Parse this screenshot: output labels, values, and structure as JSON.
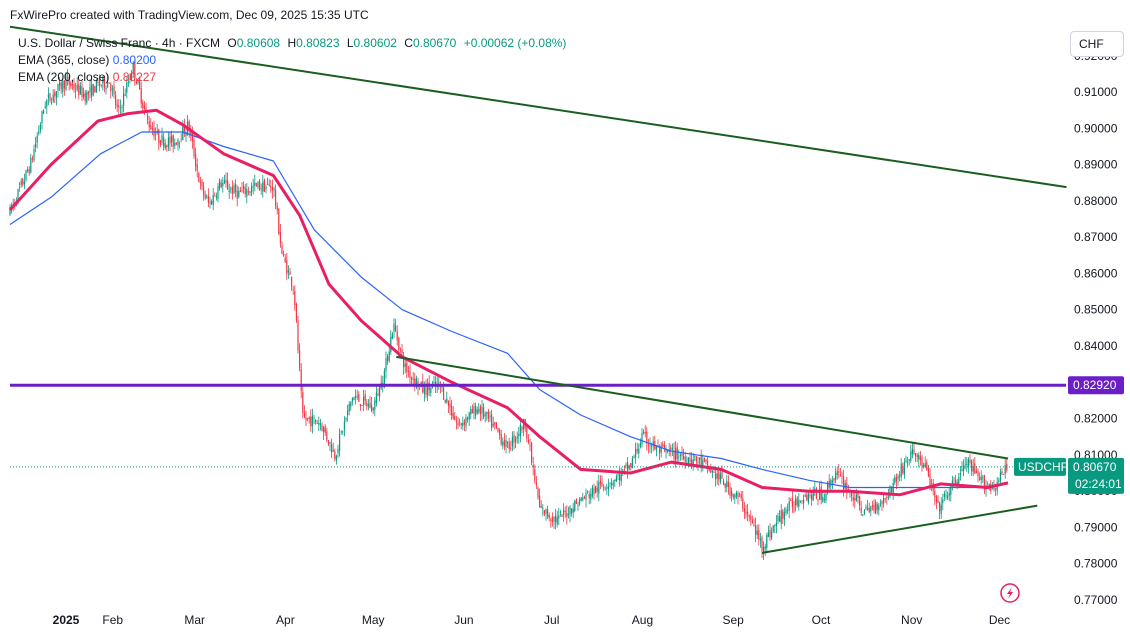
{
  "attribution": "FxWirePro created with TradingView.com, Dec 09, 2025 15:35 UTC",
  "legend": {
    "symbol": "U.S. Dollar / Swiss Franc · 4h · FXCM",
    "open_label": "O",
    "open": "0.80608",
    "high_label": "H",
    "high": "0.80823",
    "low_label": "L",
    "low": "0.80602",
    "close_label": "C",
    "close": "0.80670",
    "change": "+0.00062 (+0.08%)",
    "ema365_label": "EMA (365, close)",
    "ema365_value": "0.80200",
    "ema200_label": "EMA (200, close)",
    "ema200_value": "0.80227"
  },
  "currency": "CHF",
  "colors": {
    "up": "#089981",
    "down": "#f23645",
    "ema365": "#2962ff",
    "ema200": "#e91e63",
    "trendline": "#1b5e20",
    "level": "#6a1fc7",
    "price_tag": "#089981"
  },
  "chart_data": {
    "type": "candlestick",
    "ylim": [
      0.77,
      0.926
    ],
    "y_ticks": [
      "0.92000",
      "0.91000",
      "0.90000",
      "0.89000",
      "0.88000",
      "0.87000",
      "0.86000",
      "0.85000",
      "0.84000",
      "0.83000",
      "0.82000",
      "0.81000",
      "0.80000",
      "0.79000",
      "0.78000",
      "0.77000"
    ],
    "x_ticks": [
      "2025",
      "Feb",
      "Mar",
      "Apr",
      "May",
      "Jun",
      "Jul",
      "Aug",
      "Sep",
      "Oct",
      "Nov",
      "Dec"
    ],
    "x_domain": [
      "2025-01-01",
      "2025-12-31"
    ],
    "horizontal_level": {
      "value": 0.8292,
      "label": "0.82920"
    },
    "last_price": {
      "symbol": "USDCHF",
      "value": 0.8067,
      "label": "0.80670",
      "countdown": "02:24:01"
    },
    "trendlines": [
      {
        "from": [
          "2025-01-01",
          0.928
        ],
        "to": [
          "2025-12-28",
          0.8838
        ]
      },
      {
        "from": [
          "2025-05-13",
          0.837
        ],
        "to": [
          "2025-12-08",
          0.809
        ]
      },
      {
        "from": [
          "2025-09-15",
          0.783
        ],
        "to": [
          "2025-12-18",
          0.796
        ]
      }
    ],
    "price_path": [
      [
        "2025-01-01",
        0.877
      ],
      [
        "2025-01-08",
        0.89
      ],
      [
        "2025-01-13",
        0.907
      ],
      [
        "2025-01-20",
        0.913
      ],
      [
        "2025-01-27",
        0.909
      ],
      [
        "2025-01-31",
        0.912
      ],
      [
        "2025-02-04",
        0.913
      ],
      [
        "2025-02-07",
        0.904
      ],
      [
        "2025-02-12",
        0.917
      ],
      [
        "2025-02-17",
        0.902
      ],
      [
        "2025-02-21",
        0.897
      ],
      [
        "2025-02-26",
        0.896
      ],
      [
        "2025-03-03",
        0.901
      ],
      [
        "2025-03-07",
        0.884
      ],
      [
        "2025-03-10",
        0.879
      ],
      [
        "2025-03-14",
        0.885
      ],
      [
        "2025-03-20",
        0.882
      ],
      [
        "2025-03-26",
        0.884
      ],
      [
        "2025-04-01",
        0.884
      ],
      [
        "2025-04-04",
        0.865
      ],
      [
        "2025-04-08",
        0.856
      ],
      [
        "2025-04-11",
        0.82
      ],
      [
        "2025-04-17",
        0.819
      ],
      [
        "2025-04-22",
        0.81
      ],
      [
        "2025-04-28",
        0.826
      ],
      [
        "2025-05-05",
        0.823
      ],
      [
        "2025-05-09",
        0.833
      ],
      [
        "2025-05-12",
        0.846
      ],
      [
        "2025-05-16",
        0.834
      ],
      [
        "2025-05-22",
        0.828
      ],
      [
        "2025-05-28",
        0.829
      ],
      [
        "2025-06-03",
        0.818
      ],
      [
        "2025-06-10",
        0.823
      ],
      [
        "2025-06-16",
        0.817
      ],
      [
        "2025-06-20",
        0.812
      ],
      [
        "2025-06-26",
        0.819
      ],
      [
        "2025-07-01",
        0.795
      ],
      [
        "2025-07-07",
        0.792
      ],
      [
        "2025-07-14",
        0.797
      ],
      [
        "2025-07-21",
        0.801
      ],
      [
        "2025-07-28",
        0.804
      ],
      [
        "2025-08-01",
        0.807
      ],
      [
        "2025-08-05",
        0.815
      ],
      [
        "2025-08-11",
        0.811
      ],
      [
        "2025-08-18",
        0.81
      ],
      [
        "2025-08-25",
        0.808
      ],
      [
        "2025-09-01",
        0.803
      ],
      [
        "2025-09-08",
        0.797
      ],
      [
        "2025-09-15",
        0.785
      ],
      [
        "2025-09-22",
        0.794
      ],
      [
        "2025-09-29",
        0.799
      ],
      [
        "2025-10-06",
        0.799
      ],
      [
        "2025-10-10",
        0.805
      ],
      [
        "2025-10-14",
        0.801
      ],
      [
        "2025-10-20",
        0.794
      ],
      [
        "2025-10-27",
        0.798
      ],
      [
        "2025-11-03",
        0.808
      ],
      [
        "2025-11-06",
        0.811
      ],
      [
        "2025-11-10",
        0.806
      ],
      [
        "2025-11-14",
        0.795
      ],
      [
        "2025-11-18",
        0.8
      ],
      [
        "2025-11-24",
        0.808
      ],
      [
        "2025-11-28",
        0.803
      ],
      [
        "2025-12-03",
        0.801
      ],
      [
        "2025-12-08",
        0.8067
      ]
    ],
    "ema200": [
      [
        "2025-01-01",
        0.8775
      ],
      [
        "2025-01-15",
        0.89
      ],
      [
        "2025-01-31",
        0.902
      ],
      [
        "2025-02-10",
        0.904
      ],
      [
        "2025-02-20",
        0.905
      ],
      [
        "2025-03-01",
        0.901
      ],
      [
        "2025-03-15",
        0.893
      ],
      [
        "2025-04-01",
        0.887
      ],
      [
        "2025-04-10",
        0.876
      ],
      [
        "2025-04-20",
        0.857
      ],
      [
        "2025-05-01",
        0.847
      ],
      [
        "2025-05-15",
        0.837
      ],
      [
        "2025-06-01",
        0.83
      ],
      [
        "2025-06-20",
        0.823
      ],
      [
        "2025-07-01",
        0.815
      ],
      [
        "2025-07-15",
        0.806
      ],
      [
        "2025-08-01",
        0.805
      ],
      [
        "2025-08-15",
        0.808
      ],
      [
        "2025-09-01",
        0.806
      ],
      [
        "2025-09-15",
        0.801
      ],
      [
        "2025-10-01",
        0.8
      ],
      [
        "2025-10-15",
        0.8
      ],
      [
        "2025-11-01",
        0.799
      ],
      [
        "2025-11-15",
        0.802
      ],
      [
        "2025-12-01",
        0.801
      ],
      [
        "2025-12-08",
        0.8023
      ]
    ],
    "ema365": [
      [
        "2025-01-01",
        0.8735
      ],
      [
        "2025-01-15",
        0.881
      ],
      [
        "2025-02-01",
        0.893
      ],
      [
        "2025-02-15",
        0.899
      ],
      [
        "2025-03-01",
        0.899
      ],
      [
        "2025-03-15",
        0.895
      ],
      [
        "2025-04-01",
        0.891
      ],
      [
        "2025-04-15",
        0.872
      ],
      [
        "2025-05-01",
        0.859
      ],
      [
        "2025-05-15",
        0.85
      ],
      [
        "2025-06-01",
        0.844
      ],
      [
        "2025-06-20",
        0.838
      ],
      [
        "2025-07-01",
        0.828
      ],
      [
        "2025-07-15",
        0.821
      ],
      [
        "2025-08-01",
        0.815
      ],
      [
        "2025-08-15",
        0.811
      ],
      [
        "2025-09-01",
        0.809
      ],
      [
        "2025-09-15",
        0.806
      ],
      [
        "2025-10-01",
        0.803
      ],
      [
        "2025-10-15",
        0.801
      ],
      [
        "2025-11-01",
        0.801
      ],
      [
        "2025-11-15",
        0.801
      ],
      [
        "2025-12-01",
        0.801
      ],
      [
        "2025-12-08",
        0.802
      ]
    ]
  }
}
